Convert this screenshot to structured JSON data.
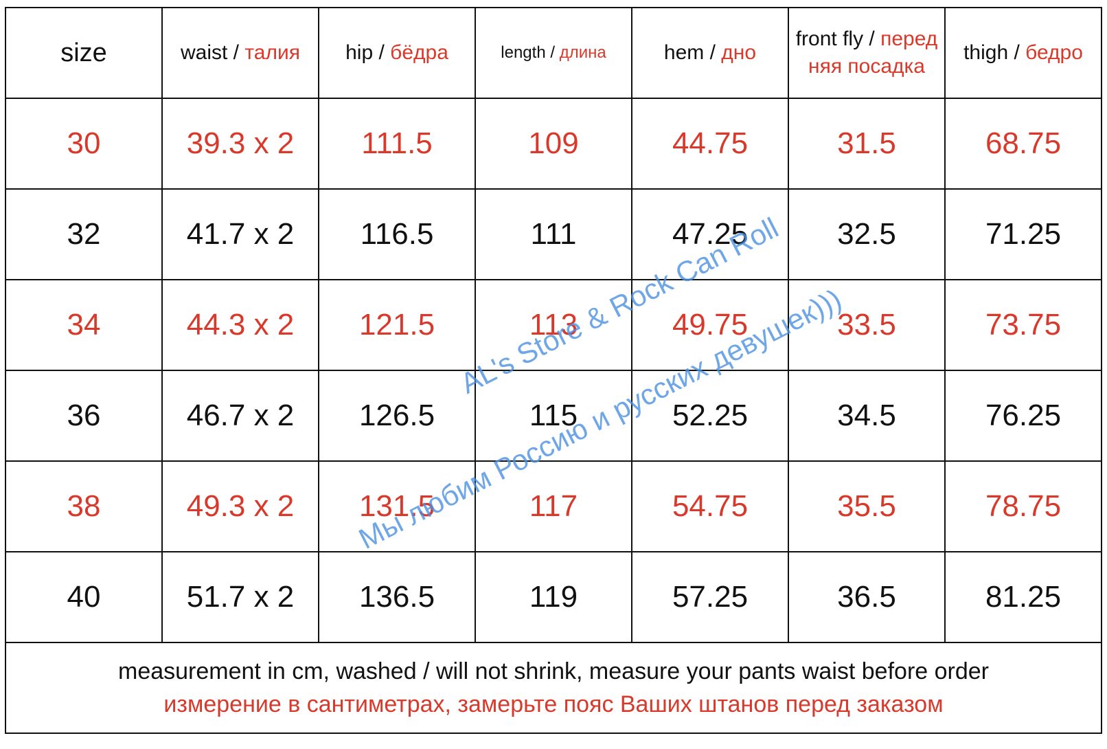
{
  "table": {
    "red": "#d8392b",
    "header": [
      {
        "en": "size"
      },
      {
        "en": "waist /",
        "ru": "талия"
      },
      {
        "en": "hip /",
        "ru": "бёдра"
      },
      {
        "en": "length /",
        "ru": "длина"
      },
      {
        "en": "hem /",
        "ru": "дно"
      },
      {
        "en": "front fly /",
        "ru": "передняя посадка"
      },
      {
        "en": "thigh /",
        "ru": "бедро"
      }
    ],
    "rows": [
      {
        "red": true,
        "cells": [
          "30",
          "39.3 x 2",
          "111.5",
          "109",
          "44.75",
          "31.5",
          "68.75"
        ]
      },
      {
        "red": false,
        "cells": [
          "32",
          "41.7 x 2",
          "116.5",
          "111",
          "47.25",
          "32.5",
          "71.25"
        ]
      },
      {
        "red": true,
        "cells": [
          "34",
          "44.3 x 2",
          "121.5",
          "113",
          "49.75",
          "33.5",
          "73.75"
        ]
      },
      {
        "red": false,
        "cells": [
          "36",
          "46.7 x 2",
          "126.5",
          "115",
          "52.25",
          "34.5",
          "76.25"
        ]
      },
      {
        "red": true,
        "cells": [
          "38",
          "49.3 x 2",
          "131.5",
          "117",
          "54.75",
          "35.5",
          "78.75"
        ]
      },
      {
        "red": false,
        "cells": [
          "40",
          "51.7 x 2",
          "136.5",
          "119",
          "57.25",
          "36.5",
          "81.25"
        ]
      }
    ],
    "note_en": "measurement in cm, washed / will not shrink, measure your pants waist before order",
    "note_ru": "измерение в сантиметрах, замерьте пояс Ваших штанов перед заказом"
  },
  "watermark": [
    "AL's Store & Rock Can Roll",
    "Мы любим Россию и русских девушек)))"
  ]
}
